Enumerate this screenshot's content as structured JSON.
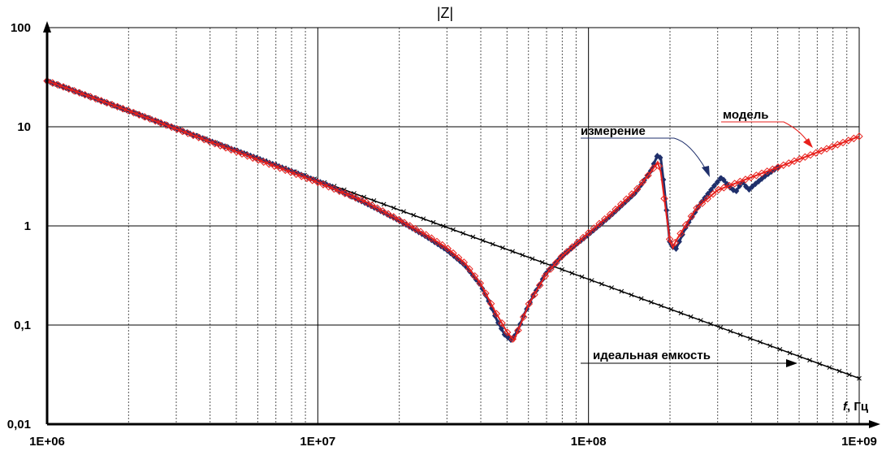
{
  "chart_data": {
    "type": "line",
    "title": "|Z|",
    "x_scale": "log",
    "y_scale": "log",
    "xlim": [
      1000000,
      1000000000
    ],
    "ylim": [
      0.01,
      100
    ],
    "grid": true,
    "xlabel_italic": "f",
    "xlabel_rest": ", Гц",
    "x_tick_labels": [
      "1E+06",
      "1E+07",
      "1E+08",
      "1E+09"
    ],
    "y_tick_labels": [
      "0,01",
      "0,1",
      "1",
      "10",
      "100"
    ],
    "x_tick_values": [
      1000000,
      10000000,
      100000000,
      1000000000
    ],
    "y_tick_values": [
      0.01,
      0.1,
      1,
      10,
      100
    ],
    "series": [
      {
        "name": "идеальная емкость",
        "color": "#000000",
        "marker": "x",
        "x": [
          1000000,
          1000000000
        ],
        "y": [
          29,
          0.029
        ]
      },
      {
        "name": "модель",
        "color": "#e8201c",
        "marker": "diamond-open",
        "x": [
          1000000,
          2000000,
          5000000,
          10000000,
          15000000,
          20000000,
          25000000,
          30000000,
          35000000,
          40000000,
          45000000,
          50000000,
          53000000,
          56000000,
          60000000,
          70000000,
          80000000,
          100000000,
          120000000,
          150000000,
          170000000,
          180000000,
          185000000,
          190000000,
          200000000,
          205000000,
          210000000,
          250000000,
          300000000,
          400000000,
          600000000,
          1000000000
        ],
        "y": [
          29,
          14.5,
          5.6,
          2.75,
          1.75,
          1.15,
          0.82,
          0.6,
          0.42,
          0.26,
          0.14,
          0.085,
          0.07,
          0.1,
          0.16,
          0.33,
          0.5,
          0.85,
          1.3,
          2.3,
          3.5,
          4.4,
          3.5,
          2,
          0.7,
          0.6,
          0.7,
          1.5,
          2.3,
          3.1,
          4.7,
          8
        ]
      },
      {
        "name": "измерение",
        "color": "#1f2f6b",
        "marker": "diamond-filled",
        "x": [
          1000000,
          2000000,
          3500000,
          6000000,
          8500000,
          11000000,
          15000000,
          20000000,
          25000000,
          30000000,
          35000000,
          40000000,
          43000000,
          46000000,
          49000000,
          52000000,
          55000000,
          58000000,
          62000000,
          70000000,
          80000000,
          100000000,
          120000000,
          150000000,
          170000000,
          180000000,
          185000000,
          190000000,
          200000000,
          210000000,
          230000000,
          260000000,
          290000000,
          310000000,
          330000000,
          350000000,
          370000000,
          390000000,
          410000000,
          450000000,
          500000000
        ],
        "y": [
          29,
          14.5,
          8.2,
          4.8,
          3.35,
          2.55,
          1.7,
          1.13,
          0.79,
          0.57,
          0.4,
          0.25,
          0.17,
          0.11,
          0.08,
          0.07,
          0.09,
          0.13,
          0.19,
          0.34,
          0.5,
          0.82,
          1.25,
          2.2,
          3.6,
          5.2,
          4.8,
          2.6,
          0.65,
          0.58,
          1,
          1.7,
          2.5,
          3.1,
          2.5,
          2.2,
          2.8,
          2.3,
          2.6,
          3.2,
          3.9
        ]
      }
    ],
    "annotations": [
      {
        "text": "измерение"
      },
      {
        "text": "модель"
      },
      {
        "text": "идеальная емкость"
      }
    ]
  }
}
